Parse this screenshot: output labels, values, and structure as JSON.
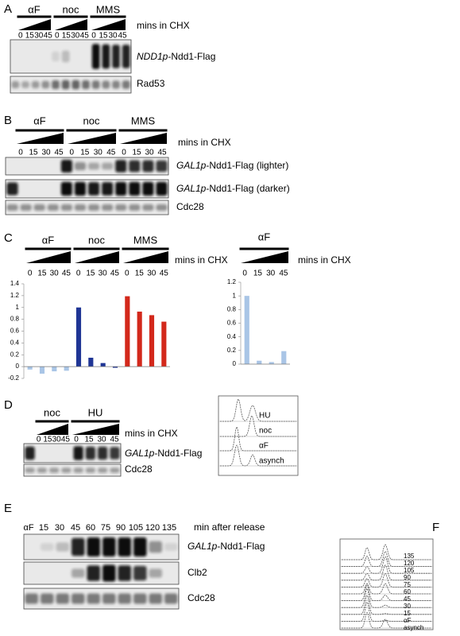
{
  "panels": [
    {
      "label": "A",
      "groups": [
        "αF",
        "noc",
        "MMS"
      ],
      "time_label": "mins in CHX",
      "times": [
        0,
        15,
        30,
        45,
        0,
        15,
        30,
        45,
        0,
        15,
        30,
        45
      ],
      "blots": [
        {
          "italic": "NDD1p",
          "text": "-Ndd1-Flag"
        },
        {
          "text": "Rad53"
        }
      ]
    },
    {
      "label": "B",
      "groups": [
        "αF",
        "noc",
        "MMS"
      ],
      "time_label": "mins in CHX",
      "times": [
        0,
        15,
        30,
        45,
        0,
        15,
        30,
        45,
        0,
        15,
        30,
        45
      ],
      "blots": [
        {
          "italic": "GAL1p",
          "text": "-Ndd1-Flag (lighter)"
        },
        {
          "italic": "GAL1p",
          "text": "-Ndd1-Flag (darker)"
        },
        {
          "text": "Cdc28"
        }
      ]
    },
    {
      "label": "C"
    },
    {
      "label": "D",
      "groups": [
        "noc",
        "HU"
      ],
      "time_label": "mins in CHX",
      "times": [
        0,
        15,
        30,
        45,
        0,
        15,
        30,
        45
      ],
      "blots": [
        {
          "italic": "GAL1p",
          "text": "-Ndd1-Flag"
        },
        {
          "text": "Cdc28"
        }
      ],
      "flow_labels": [
        "HU",
        "noc",
        "αF",
        "asynch"
      ]
    },
    {
      "label": "E",
      "time_label": "min after release",
      "times": [
        "αF",
        "15",
        "30",
        "45",
        "60",
        "75",
        "90",
        "105",
        "120",
        "135"
      ],
      "blots": [
        {
          "italic": "GAL1p",
          "text": "-Ndd1-Flag"
        },
        {
          "text": "Clb2"
        },
        {
          "text": "Cdc28"
        }
      ]
    },
    {
      "label": "F",
      "flow_labels": [
        "135",
        "120",
        "105",
        "90",
        "75",
        "60",
        "45",
        "30",
        "15",
        "αF",
        "asynch"
      ]
    }
  ],
  "chart_data": [
    {
      "type": "bar",
      "groups": [
        "αF",
        "noc",
        "MMS"
      ],
      "time_label": "mins in CHX",
      "categories": [
        0,
        15,
        30,
        45,
        0,
        15,
        30,
        45,
        0,
        15,
        30,
        45
      ],
      "values": [
        -0.05,
        -0.12,
        -0.08,
        -0.07,
        1.0,
        0.15,
        0.06,
        -0.02,
        1.19,
        0.93,
        0.87,
        0.76
      ],
      "colors": [
        "#a9c5e6",
        "#a9c5e6",
        "#a9c5e6",
        "#a9c5e6",
        "#1f3595",
        "#1f3595",
        "#1f3595",
        "#1f3595",
        "#d3281b",
        "#d3281b",
        "#d3281b",
        "#d3281b"
      ],
      "ylim": [
        -0.2,
        1.4
      ],
      "yticks": [
        -0.2,
        0,
        0.2,
        0.4,
        0.6,
        0.8,
        1,
        1.2,
        1.4
      ]
    },
    {
      "type": "bar",
      "groups": [
        "αF"
      ],
      "time_label": "mins in CHX",
      "categories": [
        0,
        15,
        30,
        45
      ],
      "values": [
        1.0,
        0.05,
        0.03,
        0.19
      ],
      "colors": [
        "#a9c5e6",
        "#a9c5e6",
        "#a9c5e6",
        "#a9c5e6"
      ],
      "ylim": [
        0,
        1.2
      ],
      "yticks": [
        0,
        0.2,
        0.4,
        0.6,
        0.8,
        1,
        1.2
      ]
    }
  ]
}
